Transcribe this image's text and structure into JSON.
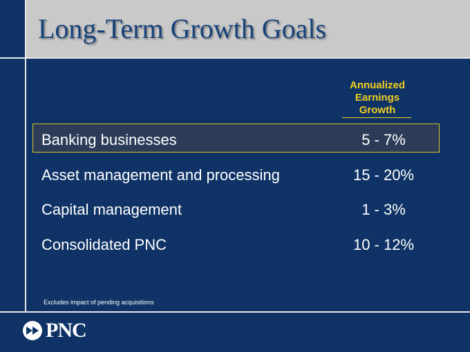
{
  "slide": {
    "title": "Long-Term Growth Goals",
    "column_header": [
      "Annualized",
      "Earnings",
      "Growth"
    ],
    "rows": [
      {
        "label": "Banking businesses",
        "value": "5 - 7%"
      },
      {
        "label": "Asset management and processing",
        "value": "15 - 20%"
      },
      {
        "label": "Capital management",
        "value": "1 - 3%"
      },
      {
        "label": "Consolidated PNC",
        "value": "10 - 12%"
      }
    ],
    "footnote": "Excludes impact of pending acquisitions",
    "logo": {
      "text": "PNC",
      "icon": "pnc-logo-icon"
    }
  },
  "colors": {
    "background": "#0f3366",
    "title_band": "#c9c9c9",
    "title_text": "#16427a",
    "accent": "#f2cf1f",
    "highlight_border": "#d8c22a"
  }
}
